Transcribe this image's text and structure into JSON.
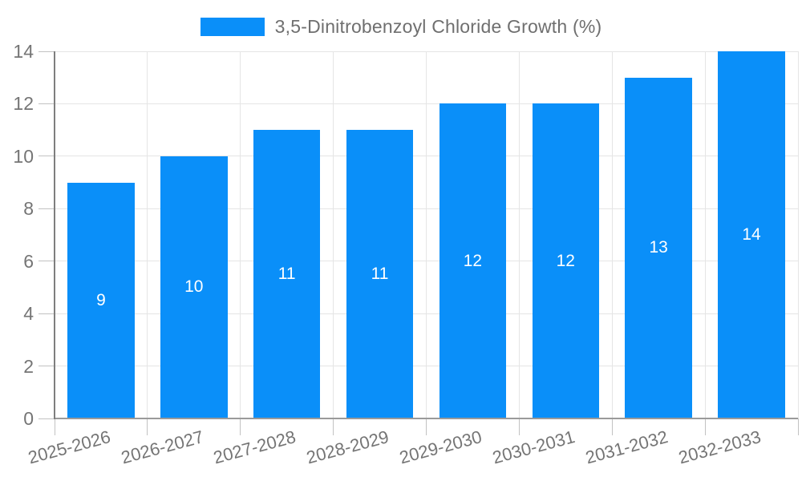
{
  "chart_data": {
    "type": "bar",
    "title": "3,5-Dinitrobenzoyl Chloride Growth (%)",
    "legend": {
      "label": "3,5-Dinitrobenzoyl Chloride Growth (%)",
      "position": "top"
    },
    "categories": [
      "2025-2026",
      "2026-2027",
      "2027-2028",
      "2028-2029",
      "2029-2030",
      "2030-2031",
      "2031-2032",
      "2032-2033"
    ],
    "series": [
      {
        "name": "3,5-Dinitrobenzoyl Chloride Growth (%)",
        "values": [
          9,
          10,
          11,
          11,
          12,
          12,
          13,
          14
        ]
      }
    ],
    "value_labels": [
      "9",
      "10",
      "11",
      "11",
      "12",
      "12",
      "13",
      "14"
    ],
    "xlabel": "",
    "ylabel": "",
    "ylim": [
      0,
      14
    ],
    "yticks": [
      0,
      2,
      4,
      6,
      8,
      10,
      12,
      14
    ],
    "grid": "both",
    "colors": {
      "bar": "#0A8FF9",
      "value_label": "#FFFFFF",
      "axis_text": "#757575",
      "legend_text": "#6F6F6F",
      "gridline": "#E5E5E5",
      "axis_line": "#8C8C8C",
      "background": "#FFFFFF"
    }
  }
}
